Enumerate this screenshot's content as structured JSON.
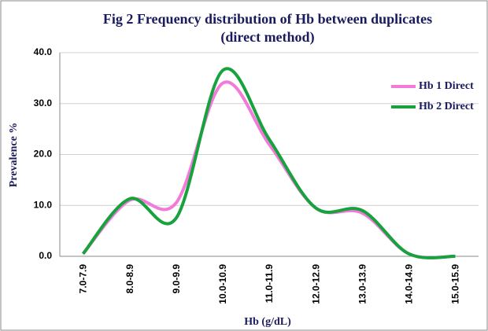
{
  "chart_data": {
    "type": "line",
    "title": "Fig 2 Frequency distribution  of Hb between duplicates",
    "subtitle": "(direct method)",
    "x_label": "Hb (g/dL)",
    "y_label": "Prevalence %",
    "categories": [
      "7.0-7.9",
      "8.0-8.9",
      "9.0-9.9",
      "10.0-10.9",
      "11.0-11.9",
      "12.0-12.9",
      "13.0-13.9",
      "14.0-14.9",
      "15.0-15.9"
    ],
    "series": [
      {
        "name": "Hb 1 Direct",
        "color": "#f27ad9",
        "values": [
          0.5,
          11,
          10.5,
          34,
          22,
          9.5,
          8.5,
          0.5,
          0
        ]
      },
      {
        "name": "Hb 2 Direct",
        "color": "#17a23e",
        "values": [
          0.5,
          11.3,
          7.5,
          36.5,
          23,
          9.5,
          9,
          0.5,
          0
        ]
      }
    ],
    "ylim": [
      0,
      40
    ],
    "yticks": [
      {
        "value": 0,
        "label": "0.0"
      },
      {
        "value": 10,
        "label": "10.0"
      },
      {
        "value": 20,
        "label": "20.0"
      },
      {
        "value": 30,
        "label": "30.0"
      },
      {
        "value": 40,
        "label": "40.0"
      }
    ],
    "grid": true,
    "legend": "top-right"
  }
}
